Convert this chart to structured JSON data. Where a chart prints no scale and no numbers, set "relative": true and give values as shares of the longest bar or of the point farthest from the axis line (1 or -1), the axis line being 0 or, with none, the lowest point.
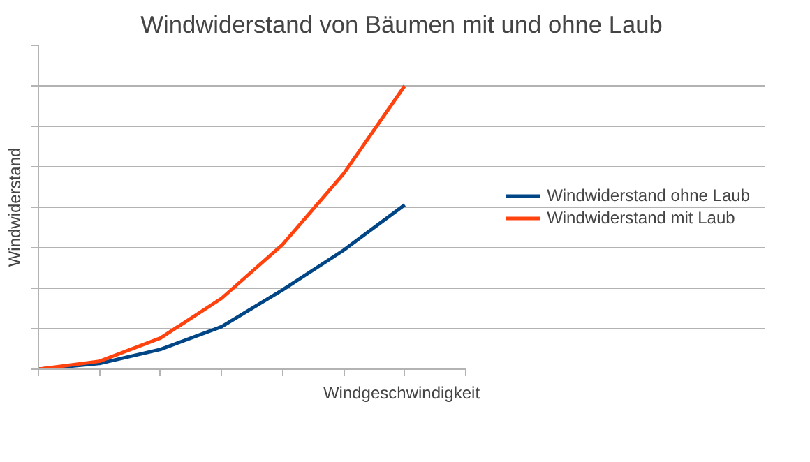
{
  "chart_data": {
    "type": "line",
    "title": "Windwiderstand von Bäumen mit und ohne Laub",
    "xlabel": "Windgeschwindigkeit",
    "ylabel": "Windwiderstand",
    "relative": true,
    "grid": "y",
    "legend": "right",
    "marker": "none",
    "line_style": "solid",
    "categories": [
      null,
      null,
      null,
      null,
      null,
      null,
      null,
      null
    ],
    "series": [
      {
        "name": "Windwiderstand ohne Laub",
        "color": "#004586",
        "values": [
          0,
          0.02,
          0.07,
          0.15,
          0.28,
          0.42,
          0.58,
          null
        ]
      },
      {
        "name": "Windwiderstand mit Laub",
        "color": "#ff420e",
        "values": [
          0,
          0.028,
          0.11,
          0.25,
          0.44,
          0.69,
          1,
          null
        ]
      }
    ]
  }
}
